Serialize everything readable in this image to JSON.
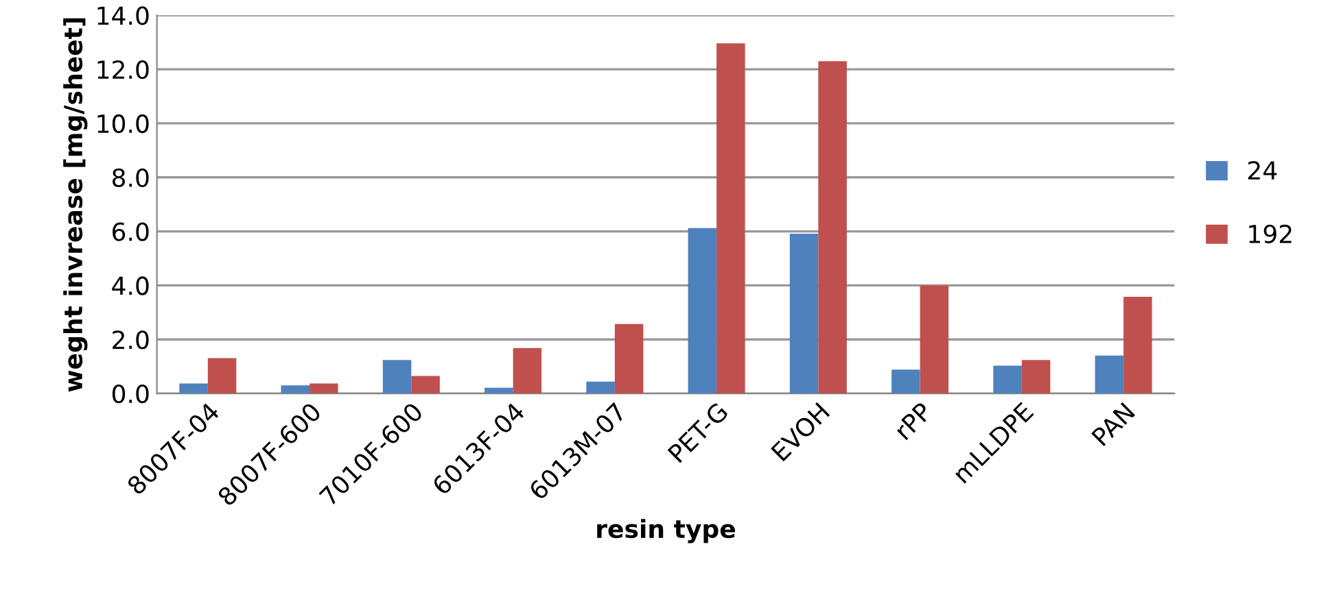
{
  "chart_data": {
    "type": "bar",
    "xlabel": "resin type",
    "ylabel": "weght invrease [mg/sheet]",
    "categories": [
      "8007F-04",
      "8007F-600",
      "7010F-600",
      "6013F-04",
      "6013M-07",
      "PET-G",
      "EVOH",
      "rPP",
      "mLLDPE",
      "PAN"
    ],
    "series": [
      {
        "name": "24",
        "color": "#4f81bd",
        "values": [
          0.37,
          0.3,
          1.24,
          0.21,
          0.44,
          6.12,
          5.91,
          0.88,
          1.03,
          1.4
        ]
      },
      {
        "name": "192",
        "color": "#c0504d",
        "values": [
          1.31,
          0.37,
          0.65,
          1.68,
          2.57,
          12.96,
          12.3,
          4.0,
          1.24,
          3.58
        ]
      }
    ],
    "ylim": [
      0,
      14
    ],
    "yticks": [
      {
        "value": 0,
        "label": "0.0"
      },
      {
        "value": 2,
        "label": "2.0"
      },
      {
        "value": 4,
        "label": "4.0"
      },
      {
        "value": 6,
        "label": "6.0"
      },
      {
        "value": 8,
        "label": "8.0"
      },
      {
        "value": 10,
        "label": "10.0"
      },
      {
        "value": 12,
        "label": "12.0"
      },
      {
        "value": 14,
        "label": "14.0"
      }
    ],
    "grid": "y",
    "legend": "right"
  }
}
